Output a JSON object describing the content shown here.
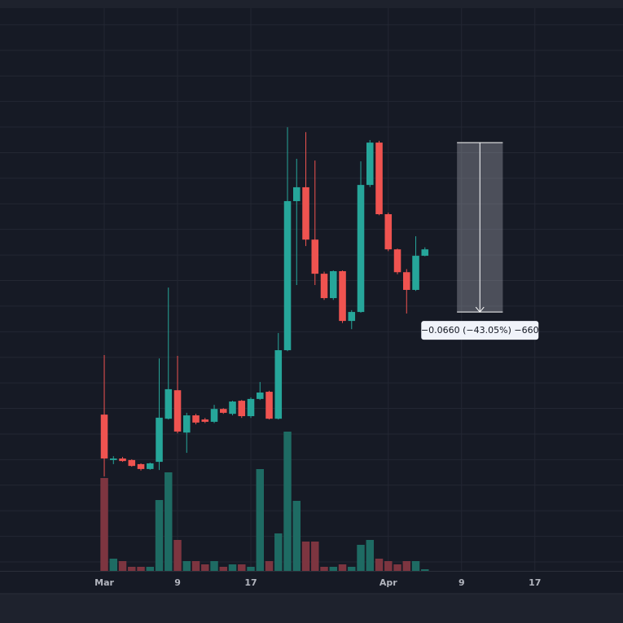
{
  "chart_data": {
    "type": "candlestick",
    "x": [
      0,
      1,
      2,
      3,
      4,
      5,
      6,
      7,
      8,
      9,
      10,
      11,
      12,
      13,
      14,
      15,
      16,
      17,
      18,
      19,
      20,
      21,
      22,
      23,
      24,
      25,
      26,
      27,
      28,
      29,
      30,
      31,
      32,
      33,
      34,
      35
    ],
    "open": [
      0.0473,
      0.0296,
      0.0302,
      0.0296,
      0.028,
      0.0261,
      0.0289,
      0.0457,
      0.0568,
      0.0403,
      0.047,
      0.0454,
      0.0445,
      0.0495,
      0.0476,
      0.0527,
      0.0467,
      0.0534,
      0.0562,
      0.0457,
      0.0724,
      0.1305,
      0.1359,
      0.1155,
      0.1022,
      0.0927,
      0.1032,
      0.0838,
      0.0873,
      0.1368,
      0.1533,
      0.1254,
      0.1117,
      0.1028,
      0.0959,
      0.1092
    ],
    "high": [
      0.0705,
      0.0311,
      0.0308,
      0.0299,
      0.0283,
      0.0286,
      0.0692,
      0.0968,
      0.0702,
      0.048,
      0.0476,
      0.046,
      0.0511,
      0.0498,
      0.0527,
      0.053,
      0.054,
      0.06,
      0.0566,
      0.0791,
      0.1593,
      0.147,
      0.1574,
      0.1463,
      0.103,
      0.1035,
      0.1035,
      0.088,
      0.146,
      0.1543,
      0.154,
      0.126,
      0.112,
      0.104,
      0.1168,
      0.1125
    ],
    "low": [
      0.0232,
      0.028,
      0.0289,
      0.027,
      0.0255,
      0.0258,
      0.0257,
      0.0454,
      0.04,
      0.0324,
      0.0435,
      0.044,
      0.044,
      0.0476,
      0.047,
      0.046,
      0.046,
      0.053,
      0.0454,
      0.0454,
      0.072,
      0.0978,
      0.113,
      0.0978,
      0.092,
      0.092,
      0.083,
      0.0806,
      0.087,
      0.136,
      0.125,
      0.111,
      0.102,
      0.0867,
      0.0955,
      0.109
    ],
    "close": [
      0.0302,
      0.0302,
      0.0292,
      0.0273,
      0.0261,
      0.0283,
      0.0461,
      0.0572,
      0.0407,
      0.047,
      0.0442,
      0.0445,
      0.0495,
      0.048,
      0.0524,
      0.0467,
      0.0534,
      0.0559,
      0.0457,
      0.0724,
      0.1305,
      0.1359,
      0.1155,
      0.1022,
      0.0927,
      0.1032,
      0.0838,
      0.0873,
      0.1368,
      0.1533,
      0.1254,
      0.1117,
      0.1028,
      0.0959,
      0.1092,
      0.1117
    ],
    "volume": [
      114,
      15,
      12,
      5,
      5,
      5,
      87,
      121,
      38,
      12,
      12,
      8,
      12,
      5,
      8,
      8,
      5,
      125,
      12,
      46,
      171,
      86,
      36,
      36,
      5,
      5,
      8,
      5,
      32,
      38,
      15,
      12,
      8,
      12,
      12,
      2
    ],
    "up_color": "#26a69a",
    "down_color": "#ef5350",
    "volume_up_color": "#1e6b63",
    "volume_down_color": "#7d3540",
    "xlim": [
      -11.38,
      56.62
    ],
    "xticks": [
      {
        "value": 0,
        "label": "Mar"
      },
      {
        "value": 8,
        "label": "9"
      },
      {
        "value": 16,
        "label": "17"
      },
      {
        "value": 31,
        "label": "Apr"
      },
      {
        "value": 39,
        "label": "9"
      },
      {
        "value": 47,
        "label": "17"
      }
    ],
    "ylim": [
      -0.0136,
      0.2057
    ],
    "y2lim": [
      0,
      691
    ],
    "grid": true,
    "measurement": {
      "from": 0.1533,
      "to": 0.0873,
      "x_start": 38.5,
      "x_end": 43.5,
      "label": "−0.0660 (−43.05%) −660"
    }
  }
}
